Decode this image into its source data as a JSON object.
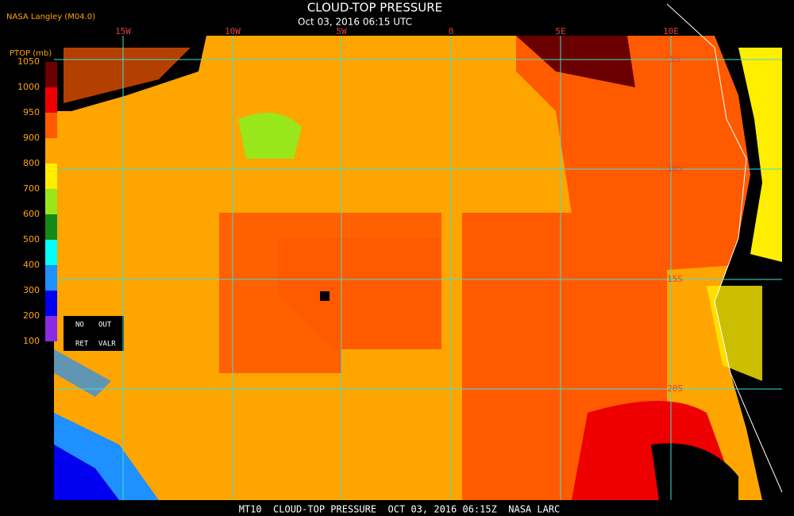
{
  "header": {
    "source": "NASA Langley (M04.0)",
    "title": "CLOUD-TOP PRESSURE",
    "subtitle": "Oct 03, 2016 06:15 UTC"
  },
  "colorbar": {
    "title": "PTOP (mb)",
    "labels": [
      "1050",
      "1000",
      "950",
      "900",
      "800",
      "700",
      "600",
      "500",
      "400",
      "300",
      "200",
      "100"
    ],
    "colors": [
      "#6b0000",
      "#ee0000",
      "#ff5a00",
      "#ffa500",
      "#ffee00",
      "#99e61a",
      "#138a13",
      "#00ffff",
      "#1e90ff",
      "#0000ee",
      "#8a2be2"
    ]
  },
  "legend_box": {
    "items": [
      "NO",
      "OUT",
      "RET",
      "VALR"
    ]
  },
  "grid": {
    "longitudes": [
      "15W",
      "10W",
      "5W",
      "0",
      "5E",
      "10E"
    ],
    "latitudes": [
      "5S",
      "10S",
      "15S",
      "20S"
    ]
  },
  "footer": "MT10  CLOUD-TOP PRESSURE  OCT 03, 2016 06:15Z  NASA LARC"
}
